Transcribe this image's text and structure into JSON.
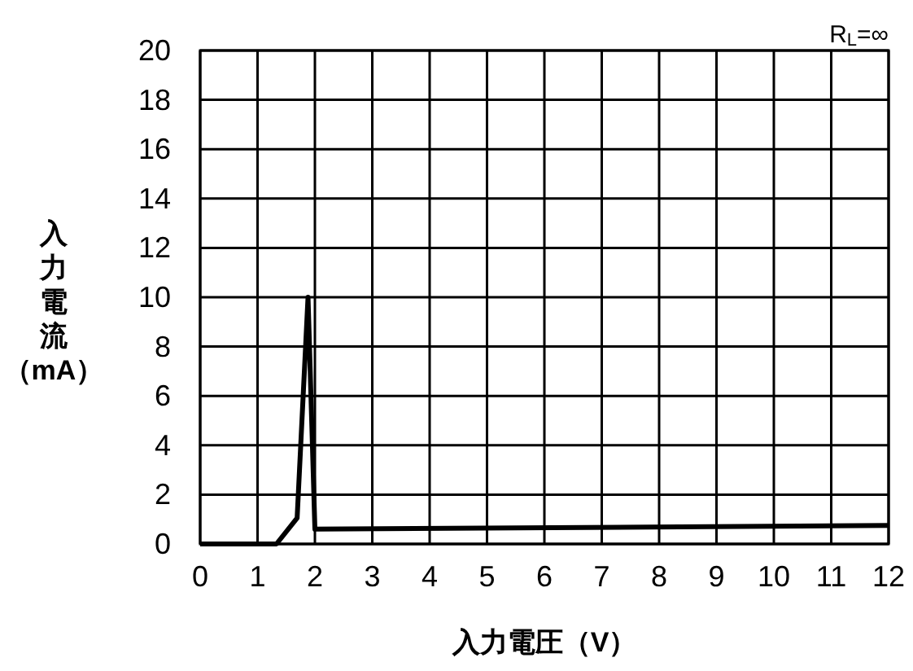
{
  "chart_data": {
    "type": "line",
    "xlabel": "入力電圧（V）",
    "ylabel": "入力電流（mA）",
    "annotations": [
      "R$_{L}$=∞"
    ],
    "series": [
      {
        "color": "#000000",
        "x": [
          0,
          1.33,
          1.69,
          1.88,
          2.0,
          12
        ],
        "values": [
          0,
          0,
          1.05,
          10,
          0.6,
          0.75
        ]
      }
    ],
    "xlim": [
      0,
      12
    ],
    "ylim": [
      0,
      20
    ],
    "xticks": [
      0,
      1,
      2,
      3,
      4,
      5,
      6,
      7,
      8,
      9,
      10,
      11,
      12
    ],
    "yticks": [
      0,
      2,
      4,
      6,
      8,
      10,
      12,
      14,
      16,
      18,
      20
    ],
    "grid": true,
    "marker": "none",
    "line_style": "solid"
  }
}
